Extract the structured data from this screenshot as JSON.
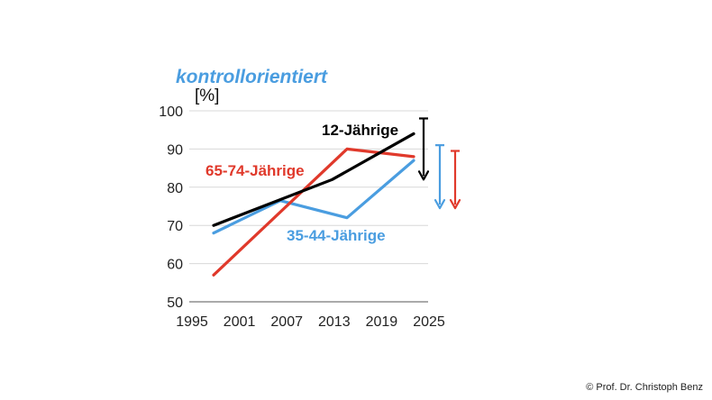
{
  "chart_data": {
    "type": "line",
    "title": "kontrollorientiert",
    "ylabel": "[%]",
    "xlabel": "",
    "xlim": [
      1995,
      2025
    ],
    "ylim": [
      50,
      100
    ],
    "xticks": [
      1995,
      2001,
      2007,
      2013,
      2019,
      2025
    ],
    "yticks": [
      50,
      60,
      70,
      80,
      90,
      100
    ],
    "grid": true,
    "series": [
      {
        "name": "12-Jährige",
        "color": "#000000",
        "x": [
          1996,
          2012,
          2023
        ],
        "y": [
          70,
          82,
          94
        ]
      },
      {
        "name": "65-74-Jährige",
        "color": "#e0392b",
        "x": [
          1996,
          2014,
          2023
        ],
        "y": [
          57,
          90,
          88
        ]
      },
      {
        "name": "35-44-Jährige",
        "color": "#4a9de0",
        "x": [
          1996,
          2005,
          2014,
          2023
        ],
        "y": [
          68,
          76.5,
          72,
          87
        ]
      }
    ],
    "arrows": [
      {
        "color": "#000000",
        "from": 98,
        "to": 82
      },
      {
        "color": "#4a9de0",
        "from": 91,
        "to": 74.5
      },
      {
        "color": "#e0392b",
        "from": 89.5,
        "to": 74.5
      }
    ]
  },
  "colors": {
    "title": "#4a9de0"
  },
  "copyright": "© Prof. Dr. Christoph Benz"
}
